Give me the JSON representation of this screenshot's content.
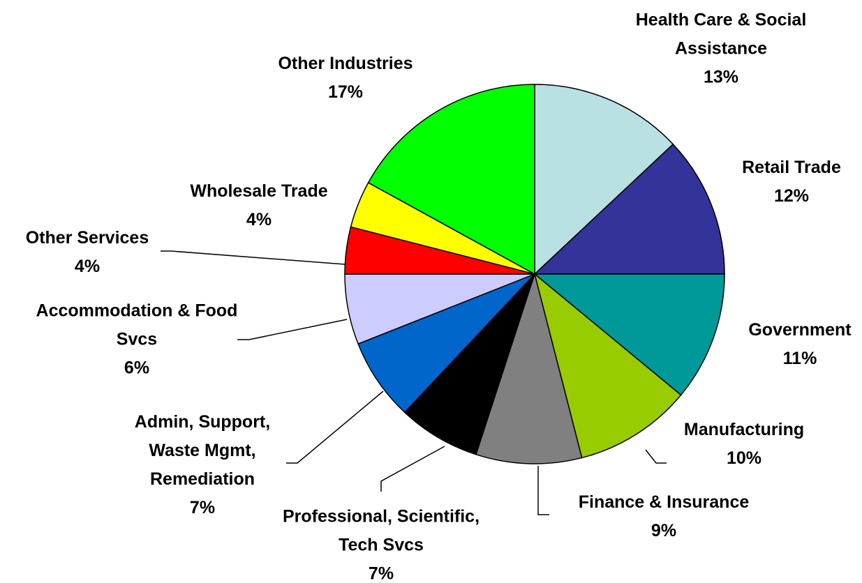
{
  "chart_data": {
    "type": "pie",
    "categories": [
      "Health Care & Social Assistance",
      "Retail Trade",
      "Government",
      "Manufacturing",
      "Finance & Insurance",
      "Professional, Scientific, Tech Svcs",
      "Admin, Support, Waste Mgmt, Remediation",
      "Accommodation & Food Svcs",
      "Other Services",
      "Wholesale Trade",
      "Other Industries"
    ],
    "values": [
      13,
      12,
      11,
      10,
      9,
      7,
      7,
      6,
      4,
      4,
      17
    ],
    "value_labels": [
      "13%",
      "12%",
      "11%",
      "10%",
      "9%",
      "7%",
      "7%",
      "6%",
      "4%",
      "4%",
      "17%"
    ],
    "colors": [
      "#b9e0e2",
      "#333399",
      "#009999",
      "#99cc00",
      "#808080",
      "#000000",
      "#0066cc",
      "#ccccff",
      "#ff0000",
      "#ffff00",
      "#00ff00"
    ]
  }
}
